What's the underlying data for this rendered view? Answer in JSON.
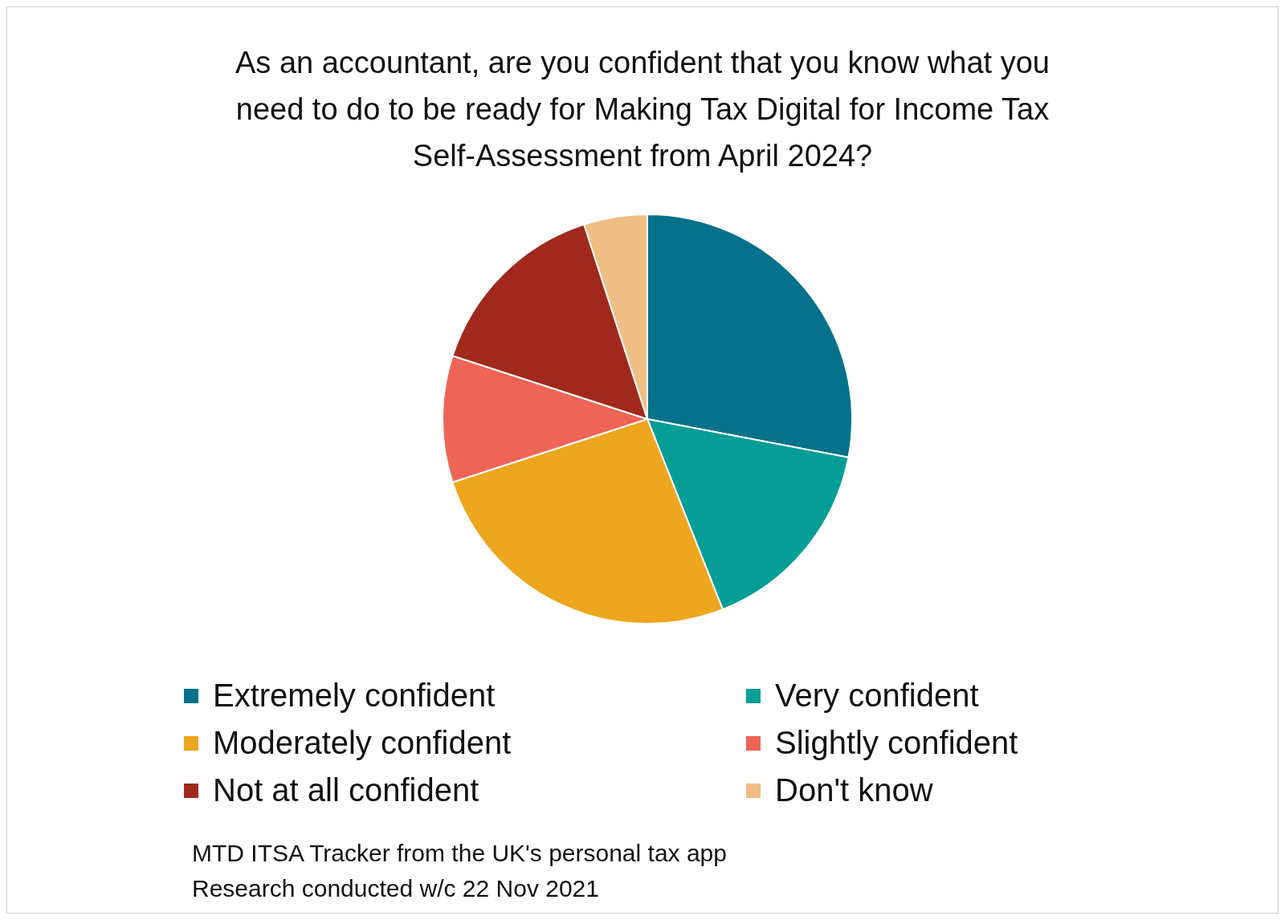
{
  "chart_data": {
    "type": "pie",
    "title": "As an accountant, are you confident that you know what you need to do to be ready for Making Tax Digital for Income Tax Self-Assessment from April 2024?",
    "categories": [
      "Extremely confident",
      "Very confident",
      "Moderately confident",
      "Slightly confident",
      "Not at all confident",
      "Don't know"
    ],
    "values": [
      28,
      16,
      26,
      10,
      15,
      5
    ],
    "colors": [
      "#03728a",
      "#049e96",
      "#eda61d",
      "#ee6457",
      "#a0291c",
      "#f0be83"
    ],
    "legend": "bottom",
    "annotations": [
      "MTD ITSA Tracker from the UK's personal tax app",
      "Research conducted w/c 22 Nov 2021"
    ]
  }
}
